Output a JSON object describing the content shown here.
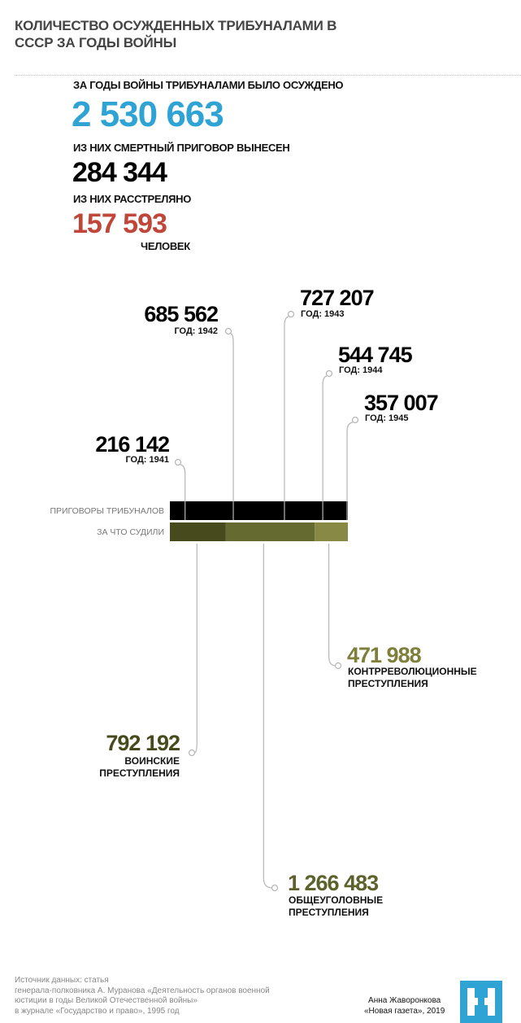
{
  "header": {
    "title": "КОЛИЧЕСТВО ОСУЖДЕННЫХ ТРИБУНАЛАМИ В СССР ЗА ГОДЫ ВОЙНЫ"
  },
  "summary": {
    "total_caption": "ЗА ГОДЫ ВОЙНЫ ТРИБУНАЛАМИ БЫЛО ОСУЖДЕНО",
    "total": "2 530 663",
    "death_caption": "ИЗ НИХ СМЕРТНЫЙ ПРИГОВОР ВЫНЕСЕН",
    "death": "284 344",
    "shot_caption": "ИЗ НИХ РАССТРЕЛЯНО",
    "shot": "157 593",
    "unit": "ЧЕЛОВЕК"
  },
  "colors": {
    "blue": "#2fa3d4",
    "red": "#c0463a",
    "black": "#000000",
    "olive_dark": "#474a1d",
    "olive_mid": "#646a30",
    "olive_light": "#878944",
    "leader": "#b5b5b5"
  },
  "chart_data": {
    "type": "stacked-bar",
    "rows": [
      {
        "label": "ПРИГОВОРЫ ТРИБУНАЛОВ",
        "segments": [
          {
            "name": "ГОД: 1941",
            "value": 216142,
            "label": "216 142"
          },
          {
            "name": "ГОД: 1942",
            "value": 685562,
            "label": "685 562"
          },
          {
            "name": "ГОД: 1943",
            "value": 727207,
            "label": "727 207"
          },
          {
            "name": "ГОД: 1944",
            "value": 544745,
            "label": "544 745"
          },
          {
            "name": "ГОД: 1945",
            "value": 357007,
            "label": "357 007"
          }
        ]
      },
      {
        "label": "ЗА ЧТО СУДИЛИ",
        "segments": [
          {
            "name": "ВОИНСКИЕ ПРЕСТУПЛЕНИЯ",
            "line1": "ВОИНСКИЕ",
            "line2": "ПРЕСТУПЛЕНИЯ",
            "value": 792192,
            "label": "792 192",
            "color": "#474a1d"
          },
          {
            "name": "ОБЩЕУГОЛОВНЫЕ ПРЕСТУПЛЕНИЯ",
            "line1": "ОБЩЕУГОЛОВНЫЕ",
            "line2": "ПРЕСТУПЛЕНИЯ",
            "value": 1266483,
            "label": "1 266 483",
            "color": "#646a30"
          },
          {
            "name": "КОНТРРЕВОЛЮЦИОННЫЕ ПРЕСТУПЛЕНИЯ",
            "line1": "КОНТРРЕВОЛЮЦИОННЫЕ",
            "line2": "ПРЕСТУПЛЕНИЯ",
            "value": 471988,
            "label": "471 988",
            "color": "#878944"
          }
        ]
      }
    ],
    "total": 2530663
  },
  "footer": {
    "source": [
      "Источник данных: статья",
      "генерала-полковника А. Муранова «Деятельность органов военной",
      "юстиции в годы Великой Отечественной войны»",
      "в журнале «Государство и право», 1995 год"
    ],
    "author": "Анна Жаворонкова",
    "publication": "«Новая газета», 2019",
    "logo": "Новая газета logo"
  }
}
